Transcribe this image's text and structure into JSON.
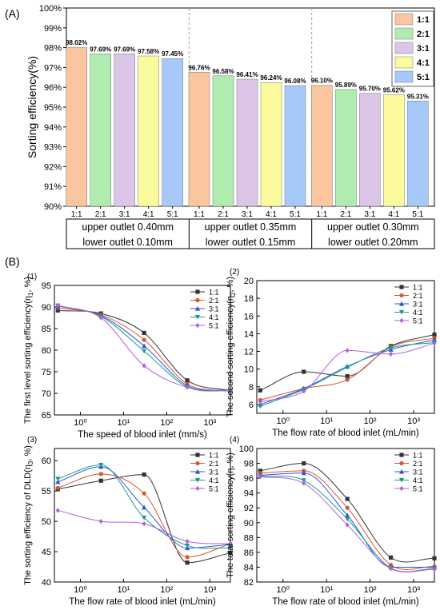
{
  "panel_a_label": "(A)",
  "panel_b_label": "(B)",
  "chart_data": [
    {
      "type": "bar",
      "ylabel": "Sorting efficiency(%)",
      "ylim": [
        90,
        100
      ],
      "yticks": [
        "90%",
        "91%",
        "92%",
        "93%",
        "94%",
        "95%",
        "96%",
        "97%",
        "98%",
        "99%",
        "100%"
      ],
      "legend_position": "top-right",
      "series_colors": [
        "#f9c6a0",
        "#b0ecb0",
        "#dcc6e8",
        "#fbfb9e",
        "#a7c9f7"
      ],
      "legend": [
        "1:1",
        "2:1",
        "3:1",
        "4:1",
        "5:1"
      ],
      "groups": [
        {
          "label_line1": "upper outlet 0.40mm",
          "label_line2": "lower outlet 0.10mm",
          "categories": [
            "1:1",
            "2:1",
            "3:1",
            "4:1",
            "5:1"
          ],
          "values": [
            98.02,
            97.69,
            97.69,
            97.58,
            97.45
          ],
          "value_labels": [
            "98.02%",
            "97.69%",
            "97.69%",
            "97.58%",
            "97.45%"
          ]
        },
        {
          "label_line1": "upper outlet 0.35mm",
          "label_line2": "lower outlet 0.15mm",
          "categories": [
            "1:1",
            "2:1",
            "3:1",
            "4:1",
            "5:1"
          ],
          "values": [
            96.76,
            96.58,
            96.41,
            96.24,
            96.08
          ],
          "value_labels": [
            "96.76%",
            "96.58%",
            "96.41%",
            "96.24%",
            "96.08%"
          ]
        },
        {
          "label_line1": "upper outlet 0.30mm",
          "label_line2": "lower outlet 0.20mm",
          "categories": [
            "1:1",
            "2:1",
            "3:1",
            "4:1",
            "5:1"
          ],
          "values": [
            96.1,
            95.89,
            95.7,
            95.62,
            95.31
          ],
          "value_labels": [
            "96.10%",
            "95.89%",
            "95.70%",
            "95.62%",
            "95.31%"
          ]
        }
      ]
    },
    {
      "type": "line",
      "panel_label": "(1)",
      "xlabel": "The speed of blood inlet (mm/s)",
      "ylabel": "The first level sorting efficiency(η",
      "ylabel_sub": "1",
      "ylabel_tail": ", %)",
      "x_scale": "log",
      "xlim": [
        0.25,
        3000
      ],
      "ylim": [
        65,
        95
      ],
      "yticks": [
        65,
        70,
        75,
        80,
        85,
        90,
        95
      ],
      "xtick_labels": [
        "10⁰",
        "10¹",
        "10²",
        "10³"
      ],
      "x": [
        0.3,
        3,
        30,
        300,
        3000
      ],
      "series": [
        {
          "name": "1:1",
          "values": [
            89.2,
            88.5,
            84.0,
            73.0,
            70.6
          ]
        },
        {
          "name": "2:1",
          "values": [
            89.8,
            88.2,
            82.4,
            72.2,
            70.5
          ]
        },
        {
          "name": "3:1",
          "values": [
            90.2,
            88.0,
            81.0,
            71.8,
            70.6
          ]
        },
        {
          "name": "4:1",
          "values": [
            90.3,
            87.8,
            79.8,
            71.5,
            70.5
          ]
        },
        {
          "name": "5:1",
          "values": [
            90.4,
            87.5,
            76.4,
            71.4,
            70.6
          ]
        }
      ]
    },
    {
      "type": "line",
      "panel_label": "(2)",
      "xlabel": "The flow rate of blood inlet (mL/min)",
      "ylabel": "The second sorting efficiency(η",
      "ylabel_sub": "2",
      "ylabel_tail": ", %)",
      "x_scale": "log",
      "xlim": [
        0.25,
        3000
      ],
      "ylim": [
        5,
        20
      ],
      "yticks": [
        6,
        8,
        10,
        12,
        14,
        16,
        18,
        20
      ],
      "xtick_labels": [
        "10⁰",
        "10¹",
        "10²",
        "10³"
      ],
      "x": [
        0.3,
        3,
        30,
        300,
        3000
      ],
      "series": [
        {
          "name": "1:1",
          "values": [
            7.6,
            9.7,
            9.2,
            12.6,
            13.9
          ]
        },
        {
          "name": "2:1",
          "values": [
            6.5,
            7.8,
            8.8,
            12.5,
            13.5
          ]
        },
        {
          "name": "3:1",
          "values": [
            6.0,
            7.8,
            10.3,
            12.2,
            13.3
          ]
        },
        {
          "name": "4:1",
          "values": [
            5.8,
            7.7,
            10.2,
            12.4,
            13.0
          ]
        },
        {
          "name": "5:1",
          "values": [
            6.3,
            7.5,
            12.1,
            11.7,
            12.9
          ]
        }
      ]
    },
    {
      "type": "line",
      "panel_label": "(3)",
      "xlabel": "The flow rate of blood inlet (mL/min)",
      "ylabel": "The sorting efficiency of DLD(η",
      "ylabel_sub": "3",
      "ylabel_tail": ", %)",
      "x_scale": "log",
      "xlim": [
        0.25,
        3000
      ],
      "ylim": [
        40,
        62
      ],
      "yticks": [
        40,
        45,
        50,
        55,
        60
      ],
      "xtick_labels": [
        "10⁰",
        "10¹",
        "10²",
        "10³"
      ],
      "x": [
        0.3,
        3,
        30,
        300,
        3000
      ],
      "series": [
        {
          "name": "1:1",
          "values": [
            55.3,
            56.7,
            57.7,
            43.2,
            44.8
          ]
        },
        {
          "name": "2:1",
          "values": [
            55.5,
            57.8,
            54.6,
            44.1,
            46.3
          ]
        },
        {
          "name": "3:1",
          "values": [
            56.5,
            59.0,
            52.3,
            45.6,
            46.2
          ]
        },
        {
          "name": "4:1",
          "values": [
            57.0,
            59.3,
            50.6,
            46.0,
            45.6
          ]
        },
        {
          "name": "5:1",
          "values": [
            51.8,
            50.0,
            49.6,
            46.7,
            46.3
          ]
        }
      ]
    },
    {
      "type": "line",
      "panel_label": "(4)",
      "xlabel": "The flow rate of blood inlet (mL/min)",
      "ylabel": "The total sorting efficiency(η, %)",
      "ylabel_sub": "",
      "ylabel_tail": "",
      "x_scale": "log",
      "xlim": [
        0.25,
        3000
      ],
      "ylim": [
        82,
        100
      ],
      "yticks": [
        82,
        84,
        86,
        88,
        90,
        92,
        94,
        96,
        98,
        100
      ],
      "xtick_labels": [
        "10⁰",
        "10¹",
        "10²",
        "10³"
      ],
      "x": [
        0.3,
        3,
        30,
        300,
        3000
      ],
      "series": [
        {
          "name": "1:1",
          "values": [
            97.0,
            98.0,
            93.2,
            85.3,
            85.2
          ]
        },
        {
          "name": "2:1",
          "values": [
            96.7,
            97.0,
            92.0,
            84.3,
            84.1
          ]
        },
        {
          "name": "3:1",
          "values": [
            96.4,
            96.7,
            91.0,
            84.0,
            84.0
          ]
        },
        {
          "name": "4:1",
          "values": [
            96.3,
            95.7,
            90.5,
            83.9,
            83.8
          ]
        },
        {
          "name": "5:1",
          "values": [
            96.2,
            95.3,
            89.7,
            83.8,
            83.7
          ]
        }
      ]
    }
  ],
  "line_series_style": {
    "colors": [
      "#333333",
      "#d9552a",
      "#2e52e0",
      "#1a9b8c",
      "#b25fe0"
    ],
    "markers": [
      "square",
      "circle",
      "triangle-up",
      "triangle-down",
      "diamond"
    ]
  }
}
